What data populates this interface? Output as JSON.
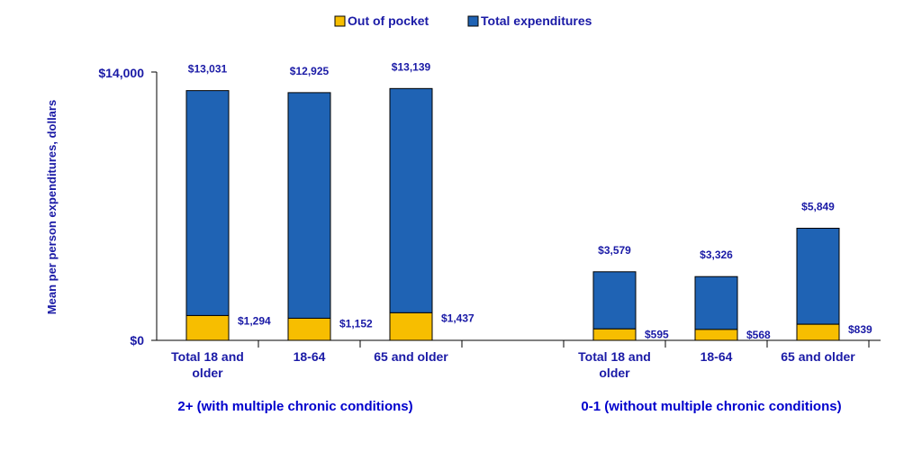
{
  "chart_data": {
    "type": "bar",
    "title": "",
    "ylabel": "Mean per person expenditures, dollars",
    "xlabel": "",
    "ylim": [
      0,
      14000
    ],
    "y_ticks": [
      "$0",
      "$14,000"
    ],
    "y_tick_values": [
      0,
      14000
    ],
    "legend": {
      "placement": "top",
      "entries": [
        "Out of pocket",
        "Total expenditures"
      ]
    },
    "groups": [
      {
        "name": "2+ (with multiple chronic conditions)",
        "categories": [
          "Total 18 and older",
          "18-64",
          "65 and older"
        ],
        "category_lines": [
          [
            "Total 18 and",
            "older"
          ],
          [
            "18-64"
          ],
          [
            "65 and older"
          ]
        ],
        "total_values": [
          13031,
          12925,
          13139
        ],
        "total_labels": [
          "$13,031",
          "$12,925",
          "$13,139"
        ],
        "oop_values": [
          1294,
          1152,
          1437
        ],
        "oop_labels": [
          "$1,294",
          "$1,152",
          "$1,437"
        ]
      },
      {
        "name": "0-1 (without multiple chronic conditions)",
        "categories": [
          "Total 18 and older",
          "18-64",
          "65 and older"
        ],
        "category_lines": [
          [
            "Total 18 and",
            "older"
          ],
          [
            "18-64"
          ],
          [
            "65 and older"
          ]
        ],
        "total_values": [
          3579,
          3326,
          5849
        ],
        "total_labels": [
          "$3,579",
          "$3,326",
          "$5,849"
        ],
        "oop_values": [
          595,
          568,
          839
        ],
        "oop_labels": [
          "$595",
          "$568",
          "$839"
        ]
      }
    ],
    "colors": {
      "total": "#1F63B4",
      "oop": "#F7BE00",
      "axis": "#000000",
      "label_blue": "#1A1AA6",
      "group_label": "#0000CC"
    }
  }
}
